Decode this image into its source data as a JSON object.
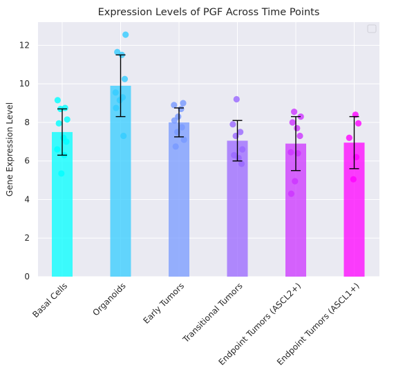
{
  "chart_data": {
    "type": "bar",
    "title": "Expression Levels of PGF Across Time Points",
    "xlabel": "",
    "ylabel": "Gene Expression Level",
    "ylim": [
      0,
      13.2
    ],
    "yticks": [
      0,
      2,
      4,
      6,
      8,
      10,
      12
    ],
    "grid": true,
    "legend": "top-right (empty)",
    "categories": [
      "Basal Cells",
      "Organoids",
      "Early Tumors",
      "Transitional Tumors",
      "Endpoint Tumors (ASCL2+)",
      "Endpoint Tumors (ASCL1+)"
    ],
    "values": [
      7.5,
      9.9,
      8.0,
      7.05,
      6.9,
      6.95
    ],
    "error": [
      1.2,
      1.6,
      0.75,
      1.05,
      1.4,
      1.35
    ],
    "colors": [
      "#00ffff",
      "#33ccff",
      "#7799ff",
      "#9966ff",
      "#cc33ff",
      "#ff00ff"
    ],
    "points": [
      [
        9.15,
        8.75,
        8.7,
        8.15,
        7.95,
        7.2,
        7.0,
        6.6,
        6.3,
        5.35
      ],
      [
        12.55,
        11.65,
        11.5,
        10.25,
        9.55,
        9.3,
        9.15,
        8.75,
        7.3
      ],
      [
        9.0,
        8.9,
        8.7,
        8.3,
        8.1,
        7.75,
        7.5,
        7.1,
        6.75
      ],
      [
        9.2,
        7.9,
        7.5,
        7.3,
        6.6,
        6.3,
        6.15,
        5.85
      ],
      [
        8.55,
        8.3,
        8.0,
        7.7,
        7.3,
        6.45,
        6.4,
        4.95,
        4.3
      ],
      [
        8.4,
        7.95,
        7.2,
        6.2,
        5.05
      ]
    ]
  }
}
